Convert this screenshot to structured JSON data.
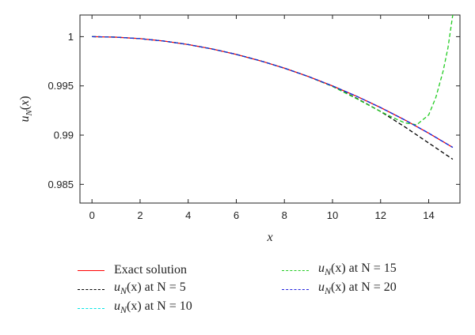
{
  "chart_data": {
    "type": "line",
    "title": "",
    "xlabel": "x",
    "ylabel": "u_N(x)",
    "xlim": [
      -0.5,
      15.3
    ],
    "ylim": [
      0.9831,
      1.0022
    ],
    "xticks": [
      0,
      2,
      4,
      6,
      8,
      10,
      12,
      14
    ],
    "xtick_labels": [
      "0",
      "2",
      "4",
      "6",
      "8",
      "10",
      "12",
      "14"
    ],
    "yticks": [
      0.985,
      0.99,
      0.995,
      1.0
    ],
    "ytick_labels": [
      "0.985",
      "0.99",
      "0.995",
      "1"
    ],
    "grid": false,
    "legend_position": "bottom",
    "series": [
      {
        "name": "Exact solution",
        "color": "#ff0000",
        "dash": "solid",
        "x": [
          0,
          1,
          2,
          3,
          4,
          5,
          6,
          7,
          8,
          9,
          10,
          11,
          12,
          13,
          14,
          15
        ],
        "y": [
          1.0,
          0.99995,
          0.9998,
          0.99955,
          0.9992,
          0.99875,
          0.9982,
          0.99755,
          0.9968,
          0.99595,
          0.995,
          0.99395,
          0.9928,
          0.99155,
          0.9902,
          0.98875
        ]
      },
      {
        "name": "u_N(x) at N = 5",
        "color": "#000000",
        "dash": "dashed",
        "x": [
          0,
          1,
          2,
          3,
          4,
          5,
          6,
          7,
          8,
          9,
          10,
          11,
          12,
          13,
          14,
          15
        ],
        "y": [
          1.0,
          0.99995,
          0.9998,
          0.99955,
          0.9992,
          0.99875,
          0.9982,
          0.99755,
          0.9968,
          0.99595,
          0.99495,
          0.99375,
          0.9924,
          0.99085,
          0.9892,
          0.98755
        ]
      },
      {
        "name": "u_N(x) at N = 10",
        "color": "#00e5e5",
        "dash": "dashed",
        "x": [
          0,
          1,
          2,
          3,
          4,
          5,
          6,
          7,
          8,
          9,
          10,
          11,
          12,
          13,
          14,
          15
        ],
        "y": [
          1.0,
          0.99995,
          0.9998,
          0.99955,
          0.9992,
          0.99875,
          0.9982,
          0.99755,
          0.9968,
          0.99595,
          0.995,
          0.99395,
          0.9928,
          0.99155,
          0.9902,
          0.98875
        ]
      },
      {
        "name": "u_N(x) at N = 15",
        "color": "#22cc22",
        "dash": "dashed",
        "x": [
          0,
          1,
          2,
          3,
          4,
          5,
          6,
          7,
          8,
          9,
          10,
          11,
          11.5,
          12,
          12.5,
          13,
          13.5,
          14,
          14.3,
          14.6,
          14.8,
          15
        ],
        "y": [
          1.0,
          0.99995,
          0.9998,
          0.99955,
          0.9992,
          0.99875,
          0.9982,
          0.99755,
          0.9968,
          0.99595,
          0.99495,
          0.9937,
          0.99305,
          0.9924,
          0.9918,
          0.99125,
          0.99105,
          0.99205,
          0.99385,
          0.9965,
          0.99885,
          1.0022
        ]
      },
      {
        "name": "u_N(x) at N = 20",
        "color": "#2222dd",
        "dash": "dashed",
        "x": [
          0,
          1,
          2,
          3,
          4,
          5,
          6,
          7,
          8,
          9,
          10,
          11,
          12,
          13,
          14,
          15
        ],
        "y": [
          1.0,
          0.99995,
          0.9998,
          0.99955,
          0.9992,
          0.99875,
          0.9982,
          0.99755,
          0.9968,
          0.99595,
          0.995,
          0.99395,
          0.9928,
          0.99155,
          0.9902,
          0.98875
        ]
      }
    ]
  },
  "legend": {
    "items": [
      {
        "prefix": "",
        "suffix": "Exact solution",
        "color": "#ff0000",
        "dash": "solid"
      },
      {
        "prefix": "u",
        "sub": "N",
        "suffix": "(x) at N = 5",
        "color": "#000000",
        "dash": "dashed"
      },
      {
        "prefix": "u",
        "sub": "N",
        "suffix": "(x) at N = 10",
        "color": "#00e5e5",
        "dash": "dashed"
      },
      {
        "prefix": "u",
        "sub": "N",
        "suffix": "(x) at N = 15",
        "color": "#22cc22",
        "dash": "dashed"
      },
      {
        "prefix": "u",
        "sub": "N",
        "suffix": "(x) at N = 20",
        "color": "#2222dd",
        "dash": "dashed"
      }
    ]
  }
}
